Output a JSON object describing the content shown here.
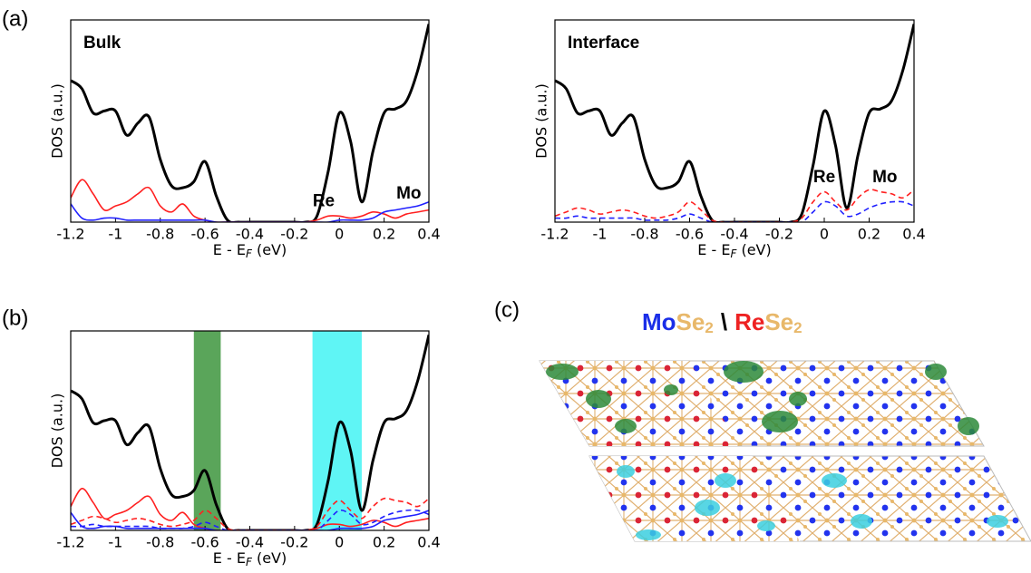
{
  "panels": [
    "(a)",
    "(b)",
    "(c)"
  ],
  "structure": {
    "title": [
      "Mo",
      "Se",
      "2",
      "\\",
      "Re",
      "Se",
      "2"
    ]
  },
  "chart_data": [
    {
      "type": "line",
      "title": "Bulk",
      "ylabel": "DOS (a.u.)",
      "xlabel": [
        "E - E",
        "F",
        " (eV)"
      ],
      "x": [
        -1.2,
        -1.15,
        -1.1,
        -1.05,
        -1,
        -0.95,
        -0.9,
        -0.85,
        -0.8,
        -0.75,
        -0.7,
        -0.65,
        -0.6,
        -0.55,
        -0.5,
        -0.45,
        -0.4,
        -0.35,
        -0.3,
        -0.25,
        -0.2,
        -0.15,
        -0.1,
        -0.05,
        0,
        0.05,
        0.1,
        0.15,
        0.2,
        0.25,
        0.3,
        0.35,
        0.4
      ],
      "xlim": [
        -1.2,
        0.4
      ],
      "xticks": [
        -1.2,
        -1,
        -0.8,
        -0.6,
        -0.4,
        -0.2,
        0,
        0.2,
        0.4
      ],
      "ylim": [
        0,
        1
      ],
      "series": [
        {
          "color": "#000000",
          "dash": false,
          "values": [
            0.7,
            0.66,
            0.54,
            0.55,
            0.55,
            0.43,
            0.49,
            0.52,
            0.31,
            0.18,
            0.17,
            0.2,
            0.3,
            0.13,
            0.01,
            0,
            0,
            0,
            0,
            0,
            0,
            0,
            0.03,
            0.25,
            0.54,
            0.4,
            0.1,
            0.35,
            0.54,
            0.56,
            0.6,
            0.75,
            0.98
          ]
        },
        {
          "color": "#ff2020",
          "dash": false,
          "values": [
            0.12,
            0.21,
            0.14,
            0.06,
            0.08,
            0.1,
            0.14,
            0.17,
            0.08,
            0.05,
            0.09,
            0.03,
            0.01,
            0,
            0,
            0,
            0,
            0,
            0,
            0,
            0,
            0,
            0.01,
            0.03,
            0.03,
            0.02,
            0.03,
            0.05,
            0.04,
            0.02,
            0.04,
            0.05,
            0.06
          ]
        },
        {
          "color": "#2020ff",
          "dash": false,
          "values": [
            0.09,
            0.02,
            0.01,
            0.02,
            0.02,
            0.01,
            0.01,
            0.01,
            0.01,
            0.01,
            0.01,
            0.01,
            0.01,
            0,
            0,
            0,
            0,
            0,
            0,
            0,
            0,
            0,
            0,
            0,
            0.01,
            0.01,
            0.01,
            0.02,
            0.05,
            0.06,
            0.07,
            0.08,
            0.1
          ]
        }
      ],
      "annotations": [
        {
          "text": "Re",
          "x": -0.07,
          "y": 0.1,
          "color": "#ff2020"
        },
        {
          "text": "Mo",
          "x": 0.31,
          "y": 0.14,
          "color": "#2020ff"
        }
      ]
    },
    {
      "type": "line",
      "title": "Interface",
      "ylabel": "DOS (a.u.)",
      "xlabel": [
        "E - E",
        "F",
        " (eV)"
      ],
      "x": [
        -1.2,
        -1.15,
        -1.1,
        -1.05,
        -1,
        -0.95,
        -0.9,
        -0.85,
        -0.8,
        -0.75,
        -0.7,
        -0.65,
        -0.6,
        -0.55,
        -0.5,
        -0.45,
        -0.4,
        -0.35,
        -0.3,
        -0.25,
        -0.2,
        -0.15,
        -0.1,
        -0.05,
        0,
        0.05,
        0.1,
        0.15,
        0.2,
        0.25,
        0.3,
        0.35,
        0.4
      ],
      "xlim": [
        -1.2,
        0.4
      ],
      "xticks": [
        -1.2,
        -1,
        -0.8,
        -0.6,
        -0.4,
        -0.2,
        0,
        0.2,
        0.4
      ],
      "ylim": [
        0,
        1
      ],
      "series": [
        {
          "color": "#000000",
          "dash": false,
          "values": [
            0.7,
            0.66,
            0.54,
            0.55,
            0.55,
            0.43,
            0.49,
            0.52,
            0.31,
            0.18,
            0.17,
            0.2,
            0.3,
            0.13,
            0.01,
            0,
            0,
            0,
            0,
            0,
            0,
            0,
            0.04,
            0.28,
            0.55,
            0.38,
            0.07,
            0.33,
            0.54,
            0.56,
            0.6,
            0.75,
            0.98
          ]
        },
        {
          "color": "#ff2020",
          "dash": true,
          "values": [
            0.03,
            0.05,
            0.07,
            0.06,
            0.04,
            0.05,
            0.06,
            0.05,
            0.03,
            0.02,
            0.03,
            0.05,
            0.1,
            0.06,
            0.01,
            0,
            0,
            0,
            0,
            0,
            0,
            0,
            0.02,
            0.1,
            0.15,
            0.1,
            0.06,
            0.12,
            0.16,
            0.15,
            0.14,
            0.12,
            0.16
          ]
        },
        {
          "color": "#2020ff",
          "dash": true,
          "values": [
            0.02,
            0.02,
            0.03,
            0.02,
            0.02,
            0.02,
            0.02,
            0.02,
            0.01,
            0.01,
            0.01,
            0.02,
            0.04,
            0.02,
            0,
            0,
            0,
            0,
            0,
            0,
            0,
            0,
            0,
            0.05,
            0.1,
            0.08,
            0.03,
            0.04,
            0.07,
            0.09,
            0.1,
            0.1,
            0.08
          ]
        }
      ],
      "annotations": [
        {
          "text": "Re",
          "x": 0,
          "y": 0.22,
          "color": "#ff2020"
        },
        {
          "text": "Mo",
          "x": 0.27,
          "y": 0.22,
          "color": "#2020ff"
        }
      ]
    },
    {
      "type": "line",
      "ylabel": "DOS (a.u.)",
      "xlabel": [
        "E - E",
        "F",
        " (eV)"
      ],
      "x": [
        -1.2,
        -1.15,
        -1.1,
        -1.05,
        -1,
        -0.95,
        -0.9,
        -0.85,
        -0.8,
        -0.75,
        -0.7,
        -0.65,
        -0.6,
        -0.55,
        -0.5,
        -0.45,
        -0.4,
        -0.35,
        -0.3,
        -0.25,
        -0.2,
        -0.15,
        -0.1,
        -0.05,
        0,
        0.05,
        0.1,
        0.15,
        0.2,
        0.25,
        0.3,
        0.35,
        0.4
      ],
      "xlim": [
        -1.2,
        0.4
      ],
      "xticks": [
        -1.2,
        -1,
        -0.8,
        -0.6,
        -0.4,
        -0.2,
        0,
        0.2,
        0.4
      ],
      "ylim": [
        0,
        1
      ],
      "spans": [
        {
          "x": [
            -0.65,
            -0.53
          ],
          "color": "#5aa55a"
        },
        {
          "x": [
            -0.12,
            0.1
          ],
          "color": "#5ff5f5"
        }
      ],
      "series": [
        {
          "color": "#000000",
          "dash": false,
          "values": [
            0.7,
            0.66,
            0.54,
            0.55,
            0.55,
            0.43,
            0.49,
            0.52,
            0.31,
            0.18,
            0.17,
            0.2,
            0.3,
            0.13,
            0.01,
            0,
            0,
            0,
            0,
            0,
            0,
            0,
            0.03,
            0.25,
            0.54,
            0.4,
            0.1,
            0.35,
            0.54,
            0.56,
            0.6,
            0.75,
            0.98
          ]
        },
        {
          "color": "#ff2020",
          "dash": false,
          "values": [
            0.12,
            0.21,
            0.14,
            0.06,
            0.08,
            0.1,
            0.14,
            0.17,
            0.08,
            0.05,
            0.09,
            0.03,
            0.01,
            0,
            0,
            0,
            0,
            0,
            0,
            0,
            0,
            0,
            0.01,
            0.03,
            0.03,
            0.02,
            0.03,
            0.05,
            0.04,
            0.02,
            0.04,
            0.05,
            0.06
          ]
        },
        {
          "color": "#2020ff",
          "dash": false,
          "values": [
            0.09,
            0.02,
            0.01,
            0.02,
            0.02,
            0.01,
            0.01,
            0.01,
            0.01,
            0.01,
            0.01,
            0.01,
            0.01,
            0,
            0,
            0,
            0,
            0,
            0,
            0,
            0,
            0,
            0,
            0,
            0.01,
            0.01,
            0.01,
            0.02,
            0.05,
            0.06,
            0.07,
            0.08,
            0.1
          ]
        },
        {
          "color": "#ff2020",
          "dash": true,
          "values": [
            0.03,
            0.05,
            0.07,
            0.06,
            0.04,
            0.05,
            0.06,
            0.05,
            0.03,
            0.02,
            0.03,
            0.05,
            0.1,
            0.06,
            0.01,
            0,
            0,
            0,
            0,
            0,
            0,
            0,
            0.02,
            0.1,
            0.15,
            0.1,
            0.06,
            0.12,
            0.16,
            0.15,
            0.14,
            0.12,
            0.16
          ]
        },
        {
          "color": "#2020ff",
          "dash": true,
          "values": [
            0.02,
            0.02,
            0.03,
            0.02,
            0.02,
            0.02,
            0.02,
            0.02,
            0.01,
            0.01,
            0.01,
            0.02,
            0.04,
            0.02,
            0,
            0,
            0,
            0,
            0,
            0,
            0,
            0,
            0,
            0.05,
            0.1,
            0.08,
            0.03,
            0.04,
            0.07,
            0.09,
            0.1,
            0.1,
            0.08
          ]
        }
      ]
    }
  ]
}
